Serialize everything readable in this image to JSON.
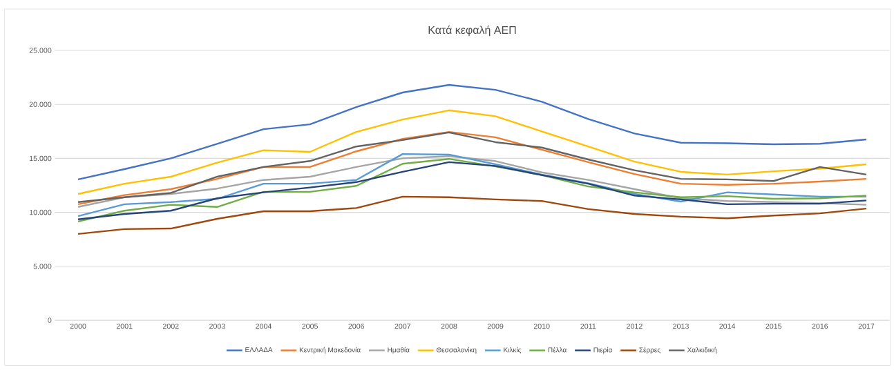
{
  "chart_data": {
    "type": "line",
    "title": "Κατά κεφαλή ΑΕΠ",
    "categories": [
      "2000",
      "2001",
      "2002",
      "2003",
      "2004",
      "2005",
      "2006",
      "2007",
      "2008",
      "2009",
      "2010",
      "2011",
      "2012",
      "2013",
      "2014",
      "2015",
      "2016",
      "2017"
    ],
    "ylim": [
      0,
      25000
    ],
    "yticks": [
      {
        "value": 0,
        "label": "0"
      },
      {
        "value": 5000,
        "label": "5.000"
      },
      {
        "value": 10000,
        "label": "10.000"
      },
      {
        "value": 15000,
        "label": "15.000"
      },
      {
        "value": 20000,
        "label": "20.000"
      },
      {
        "value": 25000,
        "label": "25.000"
      }
    ],
    "grid": "y",
    "legend": "bottom",
    "marker": "none",
    "line_style": "solid",
    "series": [
      {
        "name": "ΕΛΛΑΔΑ",
        "color": "#4472c4",
        "values": [
          13050,
          14000,
          15000,
          16350,
          17700,
          18150,
          19750,
          21100,
          21800,
          21350,
          20250,
          18650,
          17300,
          16450,
          16400,
          16300,
          16350,
          16750
        ]
      },
      {
        "name": "Κεντρική Μακεδονία",
        "color": "#ed7d31",
        "values": [
          10750,
          11600,
          12150,
          13100,
          14200,
          14200,
          15650,
          16800,
          17450,
          16950,
          15800,
          14650,
          13550,
          12650,
          12550,
          12650,
          12850,
          13100
        ]
      },
      {
        "name": "Ημαθία",
        "color": "#a5a5a5",
        "values": [
          10500,
          11400,
          11700,
          12200,
          13000,
          13300,
          14200,
          15000,
          15200,
          14750,
          13700,
          13000,
          12150,
          11300,
          11050,
          10950,
          10850,
          10700
        ]
      },
      {
        "name": "Θεσσαλονίκη",
        "color": "#ffc000",
        "values": [
          11700,
          12650,
          13300,
          14600,
          15750,
          15600,
          17450,
          18600,
          19450,
          18900,
          17500,
          16100,
          14700,
          13750,
          13500,
          13800,
          14050,
          14450
        ]
      },
      {
        "name": "Κιλκίς",
        "color": "#5b9bd5",
        "values": [
          9650,
          10750,
          10950,
          11250,
          12650,
          12650,
          13000,
          15400,
          15350,
          14450,
          13500,
          12700,
          11700,
          11000,
          11850,
          11650,
          11450,
          11450
        ]
      },
      {
        "name": "Πέλλα",
        "color": "#70ad47",
        "values": [
          9150,
          10150,
          10700,
          10500,
          11900,
          11900,
          12450,
          14500,
          14950,
          14250,
          13450,
          12400,
          11850,
          11400,
          11500,
          11250,
          11300,
          11550
        ]
      },
      {
        "name": "Πιερία",
        "color": "#264478",
        "values": [
          9350,
          9850,
          10150,
          11300,
          11850,
          12300,
          12800,
          13750,
          14650,
          14300,
          13450,
          12650,
          11550,
          11200,
          10750,
          10800,
          10800,
          11100
        ]
      },
      {
        "name": "Σέρρες",
        "color": "#9e480e",
        "values": [
          8000,
          8450,
          8500,
          9400,
          10100,
          10100,
          10400,
          11450,
          11400,
          11200,
          11050,
          10300,
          9850,
          9600,
          9450,
          9700,
          9900,
          10350
        ]
      },
      {
        "name": "Χαλκιδική",
        "color": "#636363",
        "values": [
          10950,
          11400,
          11800,
          13300,
          14200,
          14750,
          16100,
          16700,
          17400,
          16500,
          16000,
          14900,
          13900,
          13100,
          13050,
          12900,
          14200,
          13500
        ]
      }
    ]
  }
}
